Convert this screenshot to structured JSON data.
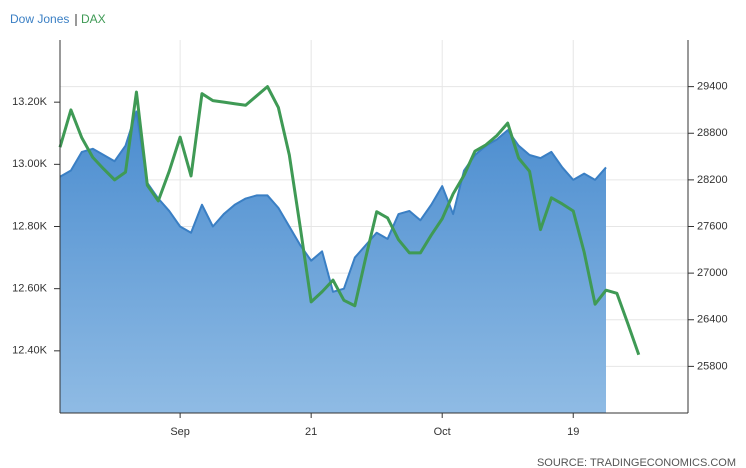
{
  "chart_data": {
    "type": "line",
    "source": "SOURCE: TRADINGECONOMICS.COM",
    "categories": [
      null,
      null,
      null,
      null,
      null,
      null,
      null,
      null,
      null,
      null,
      null,
      "Sep",
      null,
      null,
      null,
      null,
      null,
      null,
      null,
      null,
      null,
      null,
      null,
      "21",
      null,
      null,
      null,
      null,
      null,
      null,
      null,
      null,
      null,
      null,
      null,
      "Oct",
      null,
      null,
      null,
      null,
      null,
      null,
      null,
      null,
      null,
      null,
      null,
      "19",
      null,
      null,
      null,
      null,
      null,
      null
    ],
    "series": [
      {
        "name": "Dow Jones",
        "color": "#3a7fc4",
        "fill": "area",
        "axis": "y",
        "values": [
          12960,
          12980,
          13040,
          13050,
          13030,
          13010,
          13060,
          13170,
          12940,
          12890,
          12850,
          12800,
          12780,
          12870,
          12800,
          12840,
          12870,
          12890,
          12900,
          12900,
          12860,
          12800,
          12740,
          12690,
          12720,
          12590,
          12600,
          12700,
          12740,
          12780,
          12760,
          12840,
          12850,
          12820,
          12870,
          12930,
          12840,
          12980,
          13030,
          13060,
          13080,
          13110,
          13060,
          13030,
          13020,
          13040,
          12990,
          12950,
          12970,
          12950,
          12990,
          null,
          null,
          null
        ]
      },
      {
        "name": "DAX",
        "color": "#3f9a55",
        "axis": "y2",
        "values": [
          28620,
          29100,
          28740,
          28490,
          28340,
          28200,
          28300,
          29330,
          28130,
          27930,
          28310,
          28750,
          28250,
          29310,
          29220,
          29200,
          29180,
          29160,
          29280,
          29400,
          29130,
          28520,
          27590,
          26630,
          26760,
          26910,
          26650,
          26580,
          27200,
          27790,
          27710,
          27430,
          27260,
          27260,
          27490,
          27700,
          28020,
          28260,
          28570,
          28650,
          28770,
          28930,
          28480,
          28310,
          27560,
          27970,
          27890,
          27800,
          27270,
          26600,
          26780,
          26740,
          26350,
          25950
        ]
      }
    ],
    "ylim": [
      12200,
      13400
    ],
    "yticks": [
      {
        "value": 12400,
        "label": "12.40K"
      },
      {
        "value": 12600,
        "label": "12.60K"
      },
      {
        "value": 12800,
        "label": "12.80K"
      },
      {
        "value": 13000,
        "label": "13.00K"
      },
      {
        "value": 13200,
        "label": "13.20K"
      }
    ],
    "y2lim": [
      25200,
      30000
    ],
    "y2ticks": [
      25800,
      26400,
      27000,
      27600,
      28200,
      28800,
      29400
    ],
    "grid": true
  }
}
